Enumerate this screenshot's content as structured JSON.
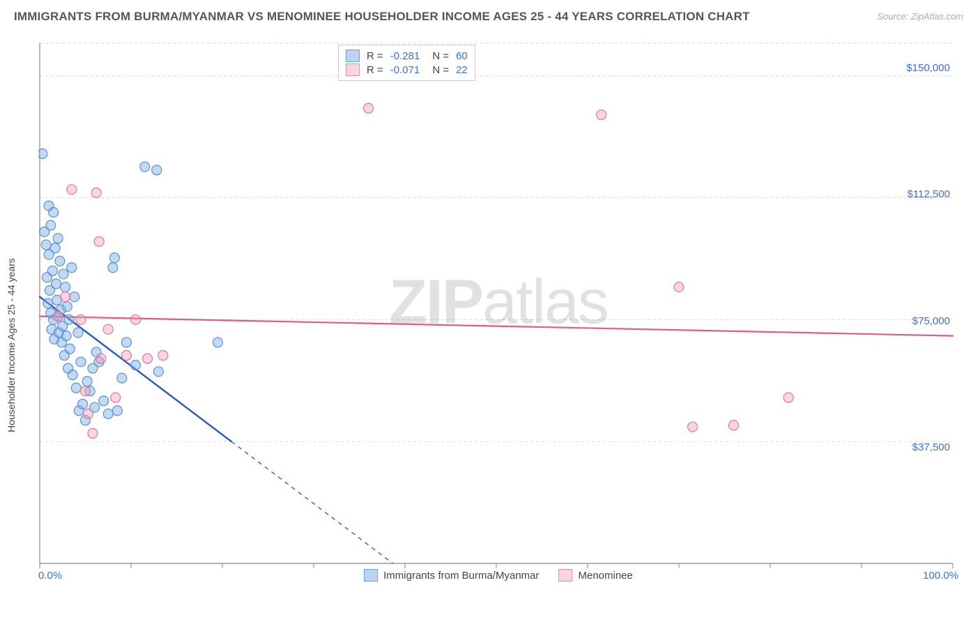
{
  "title": "IMMIGRANTS FROM BURMA/MYANMAR VS MENOMINEE HOUSEHOLDER INCOME AGES 25 - 44 YEARS CORRELATION CHART",
  "source": "Source: ZipAtlas.com",
  "watermark_bold": "ZIP",
  "watermark_rest": "atlas",
  "y_axis_label": "Householder Income Ages 25 - 44 years",
  "chart": {
    "type": "scatter",
    "background_color": "#ffffff",
    "grid_color": "#d9d9d9",
    "axis_color": "#888888",
    "x": {
      "min": 0,
      "max": 100,
      "ticks": [
        0,
        10,
        20,
        30,
        40,
        50,
        60,
        70,
        80,
        90,
        100
      ],
      "labels": {
        "0": "0.0%",
        "100": "100.0%"
      }
    },
    "y": {
      "min": 0,
      "max": 160000,
      "ticks": [
        37500,
        75000,
        112500,
        150000
      ],
      "labels": {
        "37500": "$37,500",
        "75000": "$75,000",
        "112500": "$112,500",
        "150000": "$150,000"
      },
      "grid_style": "dashed"
    },
    "point_radius": 7,
    "point_stroke_width": 1.2,
    "series": [
      {
        "name": "Immigrants from Burma/Myanmar",
        "fill": "rgba(120,170,230,0.45)",
        "stroke": "#5b90d0",
        "R": -0.281,
        "N": 60,
        "trend": {
          "y_at_x0": 82000,
          "y_at_x100": -130000,
          "solid_until_x": 21,
          "color": "#2d5fb8",
          "width": 2.5
        },
        "points": [
          [
            0.3,
            126000
          ],
          [
            0.5,
            102000
          ],
          [
            0.7,
            98000
          ],
          [
            0.8,
            88000
          ],
          [
            0.9,
            80000
          ],
          [
            1.0,
            110000
          ],
          [
            1.0,
            95000
          ],
          [
            1.1,
            84000
          ],
          [
            1.2,
            77000
          ],
          [
            1.2,
            104000
          ],
          [
            1.3,
            72000
          ],
          [
            1.4,
            90000
          ],
          [
            1.5,
            108000
          ],
          [
            1.5,
            75000
          ],
          [
            1.6,
            69000
          ],
          [
            1.7,
            97000
          ],
          [
            1.8,
            86000
          ],
          [
            1.9,
            81000
          ],
          [
            2.0,
            76000
          ],
          [
            2.0,
            100000
          ],
          [
            2.1,
            71000
          ],
          [
            2.2,
            93000
          ],
          [
            2.3,
            78000
          ],
          [
            2.4,
            68000
          ],
          [
            2.5,
            73000
          ],
          [
            2.6,
            89000
          ],
          [
            2.7,
            64000
          ],
          [
            2.8,
            85000
          ],
          [
            2.9,
            70000
          ],
          [
            3.0,
            79000
          ],
          [
            3.1,
            60000
          ],
          [
            3.2,
            75000
          ],
          [
            3.3,
            66000
          ],
          [
            3.5,
            91000
          ],
          [
            3.6,
            58000
          ],
          [
            3.8,
            82000
          ],
          [
            4.0,
            54000
          ],
          [
            4.2,
            71000
          ],
          [
            4.3,
            47000
          ],
          [
            4.5,
            62000
          ],
          [
            4.7,
            49000
          ],
          [
            5.0,
            44000
          ],
          [
            5.2,
            56000
          ],
          [
            5.5,
            53000
          ],
          [
            5.8,
            60000
          ],
          [
            6.0,
            48000
          ],
          [
            6.2,
            65000
          ],
          [
            6.5,
            62000
          ],
          [
            7.0,
            50000
          ],
          [
            7.5,
            46000
          ],
          [
            8.0,
            91000
          ],
          [
            8.2,
            94000
          ],
          [
            8.5,
            47000
          ],
          [
            9.0,
            57000
          ],
          [
            9.5,
            68000
          ],
          [
            10.5,
            61000
          ],
          [
            11.5,
            122000
          ],
          [
            12.8,
            121000
          ],
          [
            13.0,
            59000
          ],
          [
            19.5,
            68000
          ]
        ]
      },
      {
        "name": "Menominee",
        "fill": "rgba(240,150,180,0.40)",
        "stroke": "#d978a0",
        "R": -0.071,
        "N": 22,
        "trend": {
          "y_at_x0": 76000,
          "y_at_x100": 70000,
          "solid_until_x": 100,
          "color": "#e05a8e",
          "width": 2.2
        },
        "points": [
          [
            2.0,
            76000
          ],
          [
            2.8,
            82000
          ],
          [
            3.5,
            115000
          ],
          [
            4.5,
            75000
          ],
          [
            5.0,
            53000
          ],
          [
            5.3,
            46000
          ],
          [
            5.8,
            40000
          ],
          [
            6.2,
            114000
          ],
          [
            6.5,
            99000
          ],
          [
            6.7,
            63000
          ],
          [
            7.5,
            72000
          ],
          [
            8.3,
            51000
          ],
          [
            9.5,
            64000
          ],
          [
            10.5,
            75000
          ],
          [
            11.8,
            63000
          ],
          [
            13.5,
            64000
          ],
          [
            36.0,
            140000
          ],
          [
            61.5,
            138000
          ],
          [
            70.0,
            85000
          ],
          [
            71.5,
            42000
          ],
          [
            76.0,
            42500
          ],
          [
            82.0,
            51000
          ]
        ]
      }
    ],
    "legend_top": {
      "rows": [
        {
          "swatch": "blue",
          "r_label": "R =",
          "r": " -0.281",
          "n_label": "N =",
          "n": " 60"
        },
        {
          "swatch": "pink",
          "r_label": "R =",
          "r": " -0.071",
          "n_label": "N =",
          "n": " 22"
        }
      ]
    },
    "legend_bottom": [
      {
        "swatch": "blue",
        "label": "Immigrants from Burma/Myanmar"
      },
      {
        "swatch": "pink",
        "label": "Menominee"
      }
    ]
  }
}
